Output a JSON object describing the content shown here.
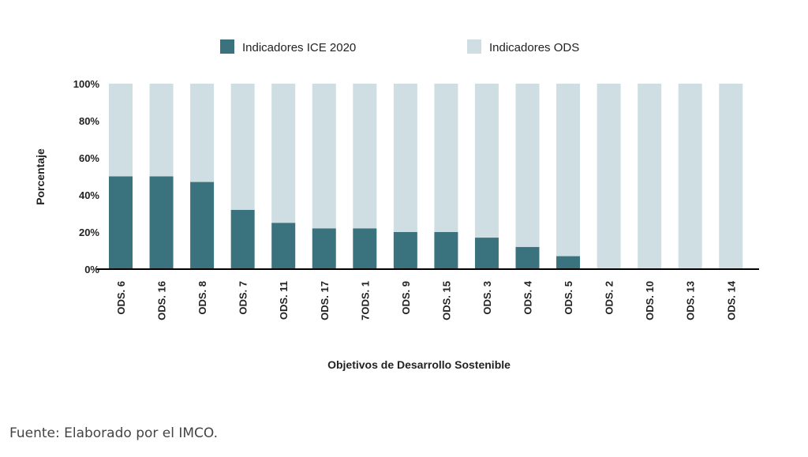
{
  "chart_data": {
    "type": "bar",
    "stacked": true,
    "xlabel": "Objetivos de Desarrollo Sostenible",
    "ylabel": "Porcentaje",
    "ylim": [
      0,
      100
    ],
    "yticks": [
      "0%",
      "20%",
      "40%",
      "60%",
      "80%",
      "100%"
    ],
    "legend_position": "top",
    "categories": [
      "ODS. 6",
      "ODS. 16",
      "ODS. 8",
      "ODS. 7",
      "ODS. 11",
      "ODS. 17",
      "7ODS. 1",
      "ODS. 9",
      "ODS. 15",
      "ODS. 3",
      "ODS. 4",
      "ODS. 5",
      "ODS. 2",
      "ODS. 10",
      "ODS. 13",
      "ODS. 14"
    ],
    "series": [
      {
        "name": "Indicadores  ICE 2020",
        "color": "#3a727e",
        "values": [
          50,
          50,
          47,
          32,
          25,
          22,
          22,
          20,
          20,
          17,
          12,
          7,
          0,
          0,
          0,
          0
        ]
      },
      {
        "name": "Indicadores ODS",
        "color": "#cfdee2",
        "values": [
          50,
          50,
          53,
          68,
          75,
          78,
          78,
          80,
          80,
          83,
          88,
          93,
          100,
          100,
          100,
          100
        ]
      }
    ]
  },
  "source": "Fuente: Elaborado por el IMCO."
}
